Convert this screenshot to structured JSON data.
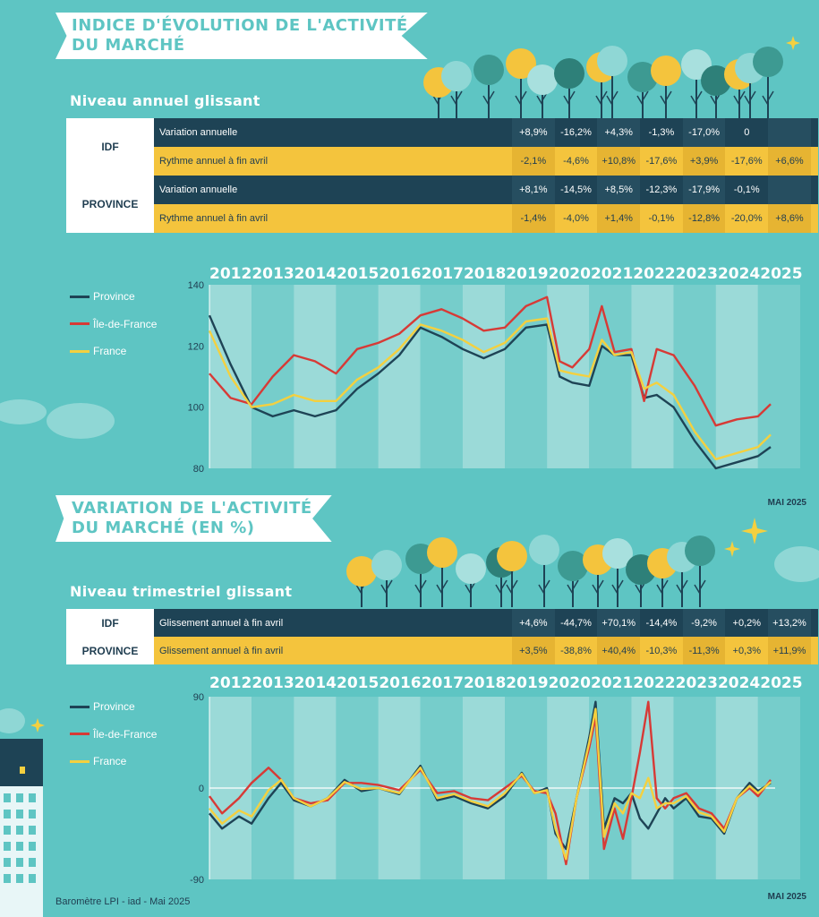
{
  "section1": {
    "title_line1": "INDICE D'ÉVOLUTION DE L'ACTIVITÉ",
    "title_line2": "DU MARCHÉ",
    "subtitle": "Niveau annuel glissant",
    "table": {
      "regions": [
        "IDF",
        "PROVINCE"
      ],
      "rows": [
        {
          "label": "Variation annuelle",
          "style": "dark",
          "values": [
            "+8,9%",
            "-16,2%",
            "+4,3%",
            "-1,3%",
            "-17,0%",
            "0",
            ""
          ]
        },
        {
          "label": "Rythme annuel à fin avril",
          "style": "yellow",
          "values": [
            "-2,1%",
            "-4,6%",
            "+10,8%",
            "-17,6%",
            "+3,9%",
            "-17,6%",
            "+6,6%"
          ]
        },
        {
          "label": "Variation annuelle",
          "style": "dark",
          "values": [
            "+8,1%",
            "-14,5%",
            "+8,5%",
            "-12,3%",
            "-17,9%",
            "-0,1%",
            ""
          ]
        },
        {
          "label": "Rythme annuel à fin avril",
          "style": "yellow",
          "values": [
            "-1,4%",
            "-4,0%",
            "+1,4%",
            "-0,1%",
            "-12,8%",
            "-20,0%",
            "+8,6%"
          ]
        }
      ]
    },
    "date_note": "MAI 2025"
  },
  "section2": {
    "title_line1": "VARIATION DE L'ACTIVITÉ",
    "title_line2": "DU MARCHÉ (EN %)",
    "subtitle": "Niveau trimestriel glissant",
    "table": {
      "regions": [
        "IDF",
        "PROVINCE"
      ],
      "rows": [
        {
          "label": "Glissement annuel à fin avril",
          "style": "dark",
          "values": [
            "+4,6%",
            "-44,7%",
            "+70,1%",
            "-14,4%",
            "-9,2%",
            "+0,2%",
            "+13,2%"
          ]
        },
        {
          "label": "Glissement annuel à fin avril",
          "style": "yellow",
          "values": [
            "+3,5%",
            "-38,8%",
            "+40,4%",
            "-10,3%",
            "-11,3%",
            "+0,3%",
            "+11,9%"
          ]
        }
      ]
    },
    "date_note": "MAI 2025"
  },
  "years": [
    "2012",
    "2013",
    "2014",
    "2015",
    "2016",
    "2017",
    "2018",
    "2019",
    "2020",
    "2021",
    "2022",
    "2023",
    "2024",
    "2025"
  ],
  "legend": [
    "Province",
    "Île-de-France",
    "France"
  ],
  "colors": {
    "province": "#1e4355",
    "idf": "#d73a36",
    "france": "#f4d03f",
    "background": "#5ec5c3"
  },
  "footer": "Baromètre LPI - iad - Mai 2025",
  "chart_data": [
    {
      "type": "line",
      "ylim": [
        80,
        140
      ],
      "yticks": [
        80,
        100,
        120,
        140
      ],
      "x": [
        2012.0,
        2012.5,
        2013.0,
        2013.5,
        2014.0,
        2014.5,
        2015.0,
        2015.5,
        2016.0,
        2016.5,
        2017.0,
        2017.5,
        2018.0,
        2018.5,
        2019.0,
        2019.5,
        2020.0,
        2020.3,
        2020.6,
        2021.0,
        2021.3,
        2021.6,
        2022.0,
        2022.3,
        2022.6,
        2023.0,
        2023.5,
        2024.0,
        2024.5,
        2025.0,
        2025.3
      ],
      "series": [
        {
          "name": "Province",
          "values": [
            130,
            114,
            100,
            97,
            99,
            97,
            99,
            106,
            111,
            117,
            126,
            123,
            119,
            116,
            119,
            126,
            127,
            110,
            108,
            107,
            120,
            117,
            117,
            103,
            104,
            100,
            89,
            80,
            82,
            84,
            87
          ]
        },
        {
          "name": "Île-de-France",
          "values": [
            111,
            103,
            101,
            110,
            117,
            115,
            111,
            119,
            121,
            124,
            130,
            132,
            129,
            125,
            126,
            133,
            136,
            115,
            113,
            119,
            133,
            118,
            119,
            102,
            119,
            117,
            107,
            94,
            96,
            97,
            101
          ]
        },
        {
          "name": "France",
          "values": [
            125,
            110,
            100,
            101,
            104,
            102,
            102,
            109,
            113,
            119,
            127,
            125,
            122,
            118,
            121,
            128,
            129,
            112,
            111,
            110,
            122,
            117,
            118,
            106,
            108,
            104,
            92,
            83,
            85,
            87,
            91
          ]
        }
      ]
    },
    {
      "type": "line",
      "ylim": [
        -90,
        90
      ],
      "yticks": [
        -90,
        0,
        90
      ],
      "x": [
        2012.0,
        2012.3,
        2012.7,
        2013.0,
        2013.4,
        2013.7,
        2014.0,
        2014.4,
        2014.8,
        2015.2,
        2015.6,
        2016.0,
        2016.5,
        2017.0,
        2017.4,
        2017.8,
        2018.2,
        2018.6,
        2019.0,
        2019.4,
        2019.7,
        2020.0,
        2020.2,
        2020.45,
        2020.7,
        2021.0,
        2021.15,
        2021.35,
        2021.6,
        2021.8,
        2022.0,
        2022.2,
        2022.4,
        2022.6,
        2022.8,
        2023.0,
        2023.3,
        2023.6,
        2023.9,
        2024.2,
        2024.5,
        2024.8,
        2025.0,
        2025.3
      ],
      "series": [
        {
          "name": "Province",
          "values": [
            -25,
            -40,
            -28,
            -35,
            -10,
            5,
            -12,
            -18,
            -10,
            8,
            -3,
            0,
            -6,
            22,
            -12,
            -8,
            -15,
            -20,
            -8,
            15,
            -5,
            0,
            -45,
            -60,
            -10,
            50,
            85,
            -40,
            -10,
            -15,
            -5,
            -30,
            -40,
            -25,
            -10,
            -20,
            -10,
            -28,
            -30,
            -45,
            -10,
            5,
            -3,
            5
          ]
        },
        {
          "name": "Île-de-France",
          "values": [
            -8,
            -25,
            -10,
            5,
            20,
            8,
            -10,
            -15,
            -12,
            5,
            5,
            3,
            -2,
            18,
            -5,
            -3,
            -10,
            -12,
            0,
            12,
            -3,
            -5,
            -25,
            -75,
            -10,
            40,
            70,
            -60,
            -20,
            -50,
            -10,
            35,
            85,
            -10,
            -20,
            -10,
            -5,
            -20,
            -25,
            -40,
            -10,
            0,
            -8,
            8
          ]
        },
        {
          "name": "France",
          "values": [
            -20,
            -35,
            -22,
            -28,
            -2,
            8,
            -10,
            -18,
            -10,
            6,
            -1,
            0,
            -5,
            20,
            -10,
            -6,
            -13,
            -18,
            -5,
            14,
            -5,
            -2,
            -40,
            -70,
            -10,
            45,
            78,
            -48,
            -15,
            -25,
            -5,
            -10,
            10,
            -20,
            -15,
            -15,
            -8,
            -24,
            -28,
            -43,
            -10,
            2,
            -5,
            6
          ]
        }
      ]
    }
  ]
}
